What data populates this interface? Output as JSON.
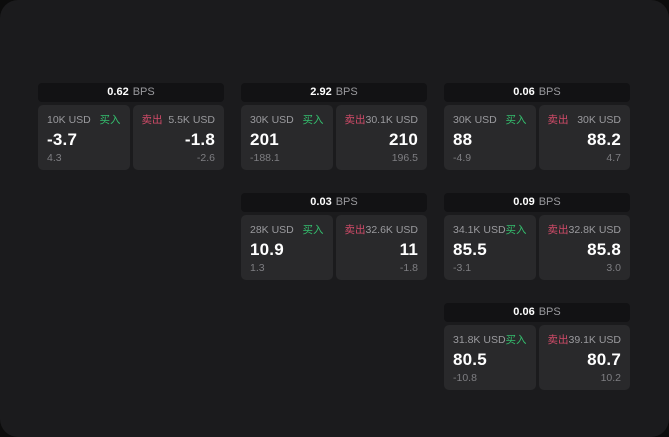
{
  "labels": {
    "buy": "买入",
    "sell": "卖出",
    "bps": "BPS"
  },
  "colors": {
    "backdrop": "#0c0c0c",
    "window-bg": "#1b1b1d",
    "card-header-bg": "#121214",
    "panel-bg": "#29292b",
    "buy-green": "#34bf6e",
    "sell-red": "#d24b69",
    "text-primary": "#ffffff",
    "text-secondary": "#9a9a9e",
    "text-muted": "#7e7e82"
  },
  "cards": [
    {
      "bps": "0.62",
      "buy": {
        "size": "10K USD",
        "price": "-3.7",
        "delta": "4.3"
      },
      "sell": {
        "size": "5.5K USD",
        "price": "-1.8",
        "delta": "-2.6"
      }
    },
    {
      "bps": "2.92",
      "buy": {
        "size": "30K USD",
        "price": "201",
        "delta": "-188.1"
      },
      "sell": {
        "size": "30.1K USD",
        "price": "210",
        "delta": "196.5"
      }
    },
    {
      "bps": "0.06",
      "buy": {
        "size": "30K USD",
        "price": "88",
        "delta": "-4.9"
      },
      "sell": {
        "size": "30K USD",
        "price": "88.2",
        "delta": "4.7"
      }
    },
    {
      "bps": "0.03",
      "buy": {
        "size": "28K USD",
        "price": "10.9",
        "delta": "1.3"
      },
      "sell": {
        "size": "32.6K USD",
        "price": "11",
        "delta": "-1.8"
      }
    },
    {
      "bps": "0.09",
      "buy": {
        "size": "34.1K USD",
        "price": "85.5",
        "delta": "-3.1"
      },
      "sell": {
        "size": "32.8K USD",
        "price": "85.8",
        "delta": "3.0"
      }
    },
    {
      "bps": "0.06",
      "buy": {
        "size": "31.8K USD",
        "price": "80.5",
        "delta": "-10.8"
      },
      "sell": {
        "size": "39.1K USD",
        "price": "80.7",
        "delta": "10.2"
      }
    }
  ]
}
